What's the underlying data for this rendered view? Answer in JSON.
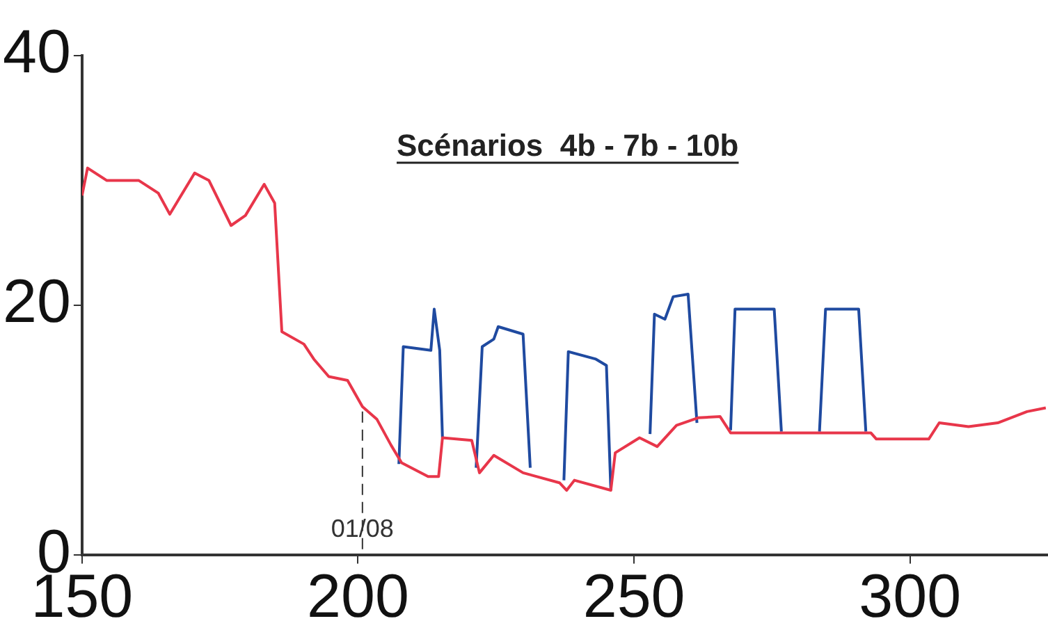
{
  "chart_data": {
    "type": "line",
    "annotations": [
      "Scénarios  4b - 7b - 10b",
      {
        "text": "01/08",
        "x": 200.8,
        "y": 2
      }
    ],
    "xlim": [
      150,
      325
    ],
    "xticks": [
      150,
      200,
      250,
      300
    ],
    "ylim": [
      0,
      40
    ],
    "yticks": [
      0,
      20,
      40
    ],
    "grid": false,
    "legend": false,
    "marker": "none",
    "line_style": "solid",
    "ref_lines": [
      {
        "axis": "x",
        "value": 200.8,
        "color": "#333333",
        "line_style": "dashed"
      }
    ],
    "series": [
      {
        "color": "#e8364a",
        "x": [
          150,
          151,
          154.5,
          160.3,
          163.8,
          165.9,
          170.4,
          173,
          177,
          179.6,
          183,
          184.9,
          186.2,
          190.2,
          192,
          194.7,
          198.1,
          200.8,
          203.4,
          206,
          207.9,
          212.7,
          214.6,
          215.3,
          220.6,
          222,
          224.6,
          229.9,
          236.5,
          237.8,
          239.2,
          245.8,
          246.6,
          251,
          254.2,
          257.7,
          261.6,
          265.6,
          267.5,
          292.9,
          293.9,
          303.4,
          305.3,
          310.6,
          315.9,
          321.2,
          324.6
        ],
        "values": [
          28.8,
          31,
          30,
          30,
          29,
          27.3,
          30.6,
          30,
          26.4,
          27.2,
          29.7,
          28.2,
          17.9,
          16.9,
          15.7,
          14.3,
          14,
          11.9,
          10.9,
          8.8,
          7.4,
          6.3,
          6.3,
          9.4,
          9.2,
          6.6,
          8,
          6.6,
          5.8,
          5.2,
          6,
          5.2,
          8.2,
          9.4,
          8.7,
          10.4,
          11,
          11.1,
          9.8,
          9.8,
          9.3,
          9.3,
          10.6,
          10.3,
          10.6,
          11.5,
          11.8
        ]
      },
      {
        "color": "#1f4aa0",
        "x": [
          207.4,
          208.2,
          213.2,
          213.8,
          214.8,
          215.3,
          218,
          221.4,
          222.5,
          224.6,
          225.4,
          229.9,
          231.2,
          234,
          237.3,
          238.1,
          243.1,
          245,
          245.8,
          249,
          252.9,
          253.7,
          255.6,
          257.1,
          259.8,
          261.4,
          264,
          267.5,
          268.3,
          275.4,
          276.7,
          280,
          283.6,
          284.7,
          290.7,
          292
        ],
        "values": [
          7.3,
          16.7,
          16.4,
          19.7,
          16.4,
          9.4,
          null,
          7,
          16.7,
          17.3,
          18.3,
          17.7,
          7,
          null,
          6,
          16.3,
          15.7,
          15.2,
          5.2,
          null,
          9.7,
          19.3,
          18.9,
          20.7,
          20.9,
          10.6,
          null,
          10,
          19.7,
          19.7,
          9.9,
          null,
          9.9,
          19.7,
          19.7,
          9.9
        ]
      }
    ]
  }
}
